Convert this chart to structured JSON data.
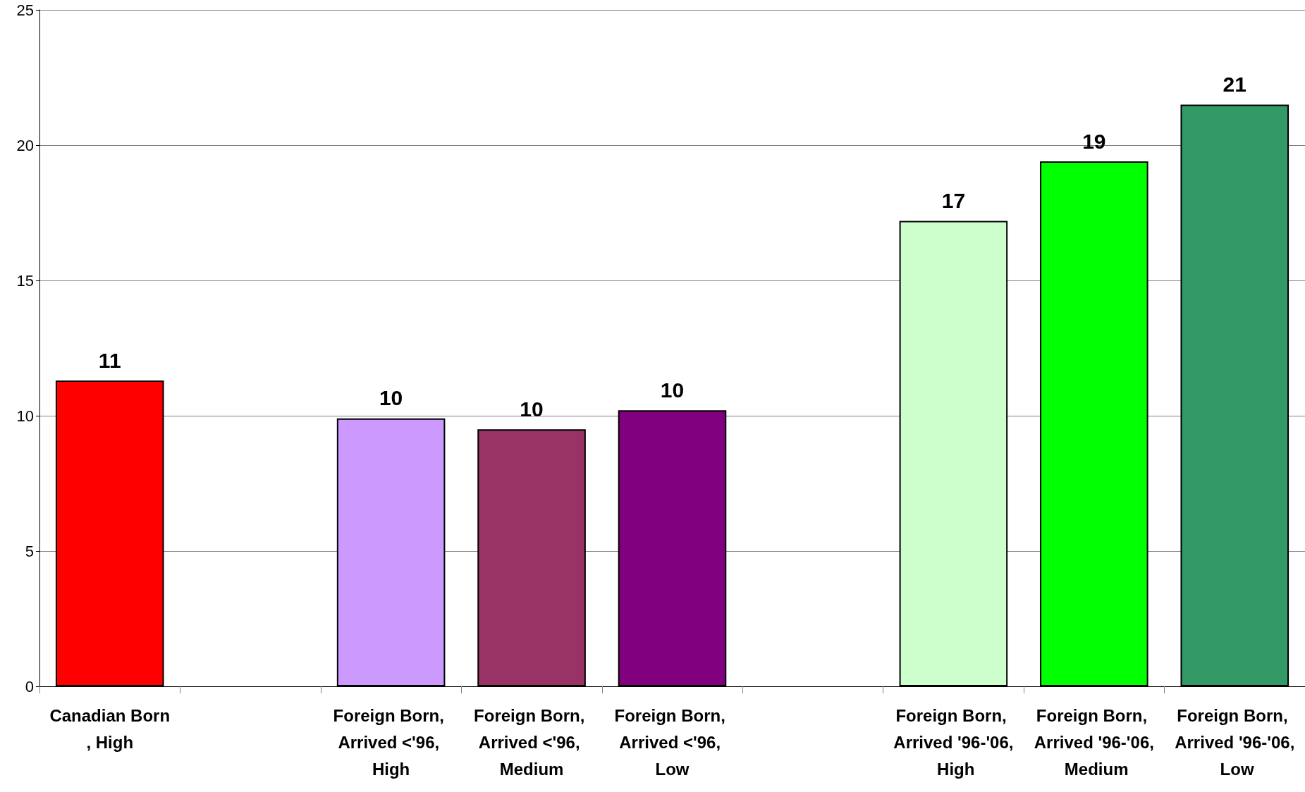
{
  "chart_data": {
    "type": "bar",
    "categories": [
      "Canadian Born, High",
      null,
      "Foreign Born, Arrived <'96, High",
      "Foreign Born, Arrived <'96, Medium",
      "Foreign Born, Arrived <'96, Low",
      null,
      "Foreign Born, Arrived '96-'06, High",
      "Foreign Born, Arrived '96-'06, Medium",
      "Foreign Born, Arrived '96-'06, Low"
    ],
    "values": [
      11.3,
      null,
      9.9,
      9.5,
      10.2,
      null,
      17.2,
      19.4,
      21.5
    ],
    "colors": [
      "#ff0000",
      null,
      "#cc99ff",
      "#993366",
      "#800080",
      null,
      "#ccffcc",
      "#00ff00",
      "#339966"
    ],
    "value_labels": [
      "11",
      null,
      "10",
      "10",
      "10",
      null,
      "17",
      "19",
      "21"
    ],
    "ylim": [
      0,
      25
    ],
    "yticks": [
      0,
      5,
      10,
      15,
      20,
      25
    ],
    "grid": "y"
  }
}
